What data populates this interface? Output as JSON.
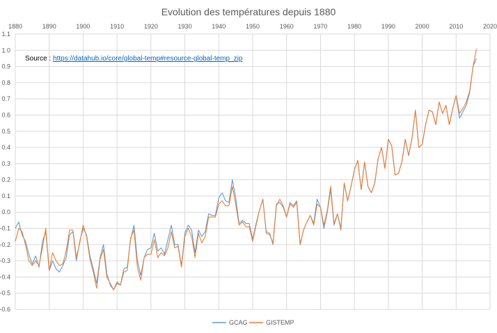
{
  "chart_data": {
    "type": "line",
    "title": "Evolution des températures depuis 1880",
    "xlabel": "",
    "ylabel": "",
    "xlim": [
      1880,
      2020
    ],
    "ylim": [
      -0.6,
      1.1
    ],
    "x_ticks": [
      1880,
      1890,
      1900,
      1910,
      1920,
      1930,
      1940,
      1950,
      1960,
      1970,
      1980,
      1990,
      2000,
      2010,
      2020
    ],
    "y_ticks": [
      -0.6,
      -0.5,
      -0.4,
      -0.3,
      -0.2,
      -0.1,
      0.0,
      0.1,
      0.2,
      0.3,
      0.4,
      0.5,
      0.6,
      0.7,
      0.8,
      0.9,
      1.0,
      1.1
    ],
    "y_tick_labels": [
      "-0.6",
      "-0.5",
      "-0.4",
      "-0.3",
      "-0.2",
      "-0.1",
      "0.0",
      "0.1",
      "0.2",
      "0.3",
      "0.4",
      "0.5",
      "0.6",
      "0.7",
      "0.8",
      "0.9",
      "1.0",
      "1.1"
    ],
    "grid": true,
    "legend_position": "bottom",
    "annotation": {
      "prefix": "Source : ",
      "link_text": "https://datahub.io/core/global-temp#resource-global-temp_zip"
    },
    "series": [
      {
        "name": "GCAG",
        "color": "#5b9bd5",
        "x": [
          1880,
          1881,
          1882,
          1883,
          1884,
          1885,
          1886,
          1887,
          1888,
          1889,
          1890,
          1891,
          1892,
          1893,
          1894,
          1895,
          1896,
          1897,
          1898,
          1899,
          1900,
          1901,
          1902,
          1903,
          1904,
          1905,
          1906,
          1907,
          1908,
          1909,
          1910,
          1911,
          1912,
          1913,
          1914,
          1915,
          1916,
          1917,
          1918,
          1919,
          1920,
          1921,
          1922,
          1923,
          1924,
          1925,
          1926,
          1927,
          1928,
          1929,
          1930,
          1931,
          1932,
          1933,
          1934,
          1935,
          1936,
          1937,
          1938,
          1939,
          1940,
          1941,
          1942,
          1943,
          1944,
          1945,
          1946,
          1947,
          1948,
          1949,
          1950,
          1951,
          1952,
          1953,
          1954,
          1955,
          1956,
          1957,
          1958,
          1959,
          1960,
          1961,
          1962,
          1963,
          1964,
          1965,
          1966,
          1967,
          1968,
          1969,
          1970,
          1971,
          1972,
          1973,
          1974,
          1975,
          1976,
          1977,
          1978,
          1979,
          1980,
          1981,
          1982,
          1983,
          1984,
          1985,
          1986,
          1987,
          1988,
          1989,
          1990,
          1991,
          1992,
          1993,
          1994,
          1995,
          1996,
          1997,
          1998,
          1999,
          2000,
          2001,
          2002,
          2003,
          2004,
          2005,
          2006,
          2007,
          2008,
          2009,
          2010,
          2011,
          2012,
          2013,
          2014,
          2015,
          2016
        ],
        "values": [
          -0.1,
          -0.06,
          -0.14,
          -0.18,
          -0.26,
          -0.32,
          -0.27,
          -0.34,
          -0.18,
          -0.12,
          -0.36,
          -0.3,
          -0.35,
          -0.37,
          -0.33,
          -0.28,
          -0.14,
          -0.12,
          -0.3,
          -0.18,
          -0.1,
          -0.14,
          -0.27,
          -0.35,
          -0.44,
          -0.28,
          -0.2,
          -0.38,
          -0.45,
          -0.48,
          -0.44,
          -0.45,
          -0.35,
          -0.34,
          -0.17,
          -0.08,
          -0.3,
          -0.39,
          -0.28,
          -0.23,
          -0.22,
          -0.13,
          -0.24,
          -0.22,
          -0.26,
          -0.17,
          -0.08,
          -0.2,
          -0.2,
          -0.33,
          -0.13,
          -0.08,
          -0.11,
          -0.25,
          -0.11,
          -0.15,
          -0.12,
          -0.01,
          -0.02,
          -0.02,
          0.09,
          0.12,
          0.07,
          0.06,
          0.2,
          0.09,
          -0.07,
          -0.05,
          -0.07,
          -0.07,
          -0.17,
          -0.07,
          0.01,
          0.08,
          -0.13,
          -0.14,
          -0.19,
          0.05,
          0.06,
          0.03,
          -0.03,
          0.06,
          0.04,
          0.07,
          -0.2,
          -0.11,
          -0.06,
          -0.02,
          -0.07,
          0.08,
          0.03,
          -0.1,
          0.0,
          0.14,
          -0.08,
          -0.01,
          -0.11,
          0.18,
          0.07,
          0.16,
          0.26,
          0.32,
          0.14,
          0.31,
          0.16,
          0.12,
          0.18,
          0.33,
          0.4,
          0.27,
          0.45,
          0.41,
          0.23,
          0.24,
          0.31,
          0.45,
          0.35,
          0.46,
          0.63,
          0.4,
          0.42,
          0.54,
          0.63,
          0.62,
          0.54,
          0.68,
          0.61,
          0.66,
          0.54,
          0.64,
          0.72,
          0.58,
          0.62,
          0.66,
          0.74,
          0.9,
          0.95
        ]
      },
      {
        "name": "GISTEMP",
        "color": "#ed7d31",
        "x": [
          1880,
          1881,
          1882,
          1883,
          1884,
          1885,
          1886,
          1887,
          1888,
          1889,
          1890,
          1891,
          1892,
          1893,
          1894,
          1895,
          1896,
          1897,
          1898,
          1899,
          1900,
          1901,
          1902,
          1903,
          1904,
          1905,
          1906,
          1907,
          1908,
          1909,
          1910,
          1911,
          1912,
          1913,
          1914,
          1915,
          1916,
          1917,
          1918,
          1919,
          1920,
          1921,
          1922,
          1923,
          1924,
          1925,
          1926,
          1927,
          1928,
          1929,
          1930,
          1931,
          1932,
          1933,
          1934,
          1935,
          1936,
          1937,
          1938,
          1939,
          1940,
          1941,
          1942,
          1943,
          1944,
          1945,
          1946,
          1947,
          1948,
          1949,
          1950,
          1951,
          1952,
          1953,
          1954,
          1955,
          1956,
          1957,
          1958,
          1959,
          1960,
          1961,
          1962,
          1963,
          1964,
          1965,
          1966,
          1967,
          1968,
          1969,
          1970,
          1971,
          1972,
          1973,
          1974,
          1975,
          1976,
          1977,
          1978,
          1979,
          1980,
          1981,
          1982,
          1983,
          1984,
          1985,
          1986,
          1987,
          1988,
          1989,
          1990,
          1991,
          1992,
          1993,
          1994,
          1995,
          1996,
          1997,
          1998,
          1999,
          2000,
          2001,
          2002,
          2003,
          2004,
          2005,
          2006,
          2007,
          2008,
          2009,
          2010,
          2011,
          2012,
          2013,
          2014,
          2015,
          2016
        ],
        "values": [
          -0.18,
          -0.1,
          -0.12,
          -0.2,
          -0.3,
          -0.33,
          -0.3,
          -0.33,
          -0.22,
          -0.1,
          -0.36,
          -0.25,
          -0.3,
          -0.33,
          -0.32,
          -0.24,
          -0.11,
          -0.11,
          -0.28,
          -0.19,
          -0.08,
          -0.15,
          -0.29,
          -0.37,
          -0.47,
          -0.29,
          -0.23,
          -0.4,
          -0.44,
          -0.48,
          -0.43,
          -0.45,
          -0.37,
          -0.36,
          -0.16,
          -0.11,
          -0.34,
          -0.42,
          -0.28,
          -0.26,
          -0.26,
          -0.17,
          -0.28,
          -0.25,
          -0.27,
          -0.22,
          -0.12,
          -0.22,
          -0.21,
          -0.34,
          -0.15,
          -0.1,
          -0.15,
          -0.28,
          -0.13,
          -0.19,
          -0.15,
          -0.03,
          -0.03,
          -0.03,
          0.05,
          0.07,
          0.04,
          0.04,
          0.16,
          0.05,
          -0.08,
          -0.06,
          -0.09,
          -0.09,
          -0.18,
          -0.08,
          0.01,
          0.08,
          -0.12,
          -0.13,
          -0.2,
          0.04,
          0.08,
          0.04,
          -0.03,
          0.05,
          0.03,
          0.06,
          -0.2,
          -0.11,
          -0.06,
          -0.02,
          -0.08,
          0.05,
          0.03,
          -0.08,
          0.01,
          0.16,
          -0.07,
          -0.01,
          -0.1,
          0.18,
          0.07,
          0.16,
          0.26,
          0.32,
          0.14,
          0.31,
          0.16,
          0.12,
          0.18,
          0.33,
          0.4,
          0.27,
          0.45,
          0.41,
          0.23,
          0.24,
          0.31,
          0.45,
          0.35,
          0.46,
          0.63,
          0.4,
          0.42,
          0.54,
          0.63,
          0.62,
          0.54,
          0.68,
          0.61,
          0.66,
          0.54,
          0.64,
          0.72,
          0.61,
          0.64,
          0.68,
          0.75,
          0.9,
          1.01
        ]
      }
    ]
  }
}
